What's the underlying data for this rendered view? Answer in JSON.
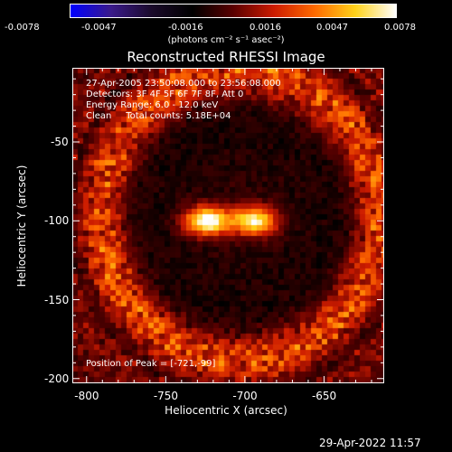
{
  "colorbar": {
    "ticks": [
      "-0.0078",
      "-0.0047",
      "-0.0016",
      "0.0016",
      "0.0047",
      "0.0078"
    ],
    "unit_text": "(photons cm⁻² s⁻¹ asec⁻²)",
    "colors": [
      "#0000ff",
      "#3a1a8a",
      "#1a0a2a",
      "#000000",
      "#5a0000",
      "#cc1b00",
      "#ff6a00",
      "#ffd21a",
      "#ffffff"
    ]
  },
  "chart_data": {
    "type": "heatmap",
    "title": "Reconstructed RHESSI Image",
    "xlabel": "Heliocentric X (arcsec)",
    "ylabel": "Heliocentric Y (arcsec)",
    "xlim": [
      -809,
      -612
    ],
    "ylim": [
      -203,
      -3
    ],
    "xticks": [
      -800,
      -750,
      -700,
      -650
    ],
    "yticks": [
      -200,
      -150,
      -100,
      -50
    ],
    "value_range": [
      -0.0078,
      0.0078
    ],
    "grid": false,
    "annotations": [
      "27-Apr-2005 23:50:08.000 to 23:56:08.000",
      "Detectors: 3F 4F 5F 6F 7F 8F, Att 0",
      "Energy Range: 6.0 - 12.0 keV",
      "Clean     Total counts: 5.18E+04"
    ],
    "peak_text": "Position of Peak = [-721,-99]",
    "peak": [
      -721,
      -99
    ],
    "sources": [
      {
        "x": -724,
        "y": -100,
        "peak_value": 0.0078
      },
      {
        "x": -694,
        "y": -100,
        "peak_value": 0.0066
      }
    ],
    "background_value": -0.0016
  },
  "footer": {
    "timestamp": "29-Apr-2022 11:57"
  }
}
